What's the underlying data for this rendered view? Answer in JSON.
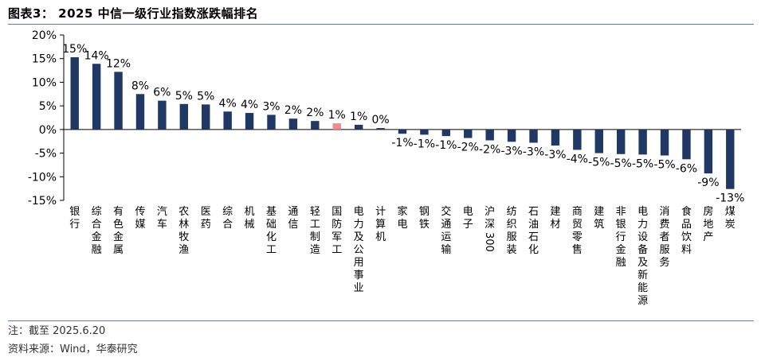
{
  "header": {
    "title": "图表3： 2025 中信一级行业指数涨跌幅排名"
  },
  "footer": {
    "note": "注：截至 2025.6.20",
    "source": "资料来源：Wind，华泰研究"
  },
  "colors": {
    "bar": "#1f3864",
    "highlight": "#f28b8b",
    "rule": "#5b7fa6"
  },
  "chart_data": {
    "type": "bar",
    "title": "",
    "xlabel": "",
    "ylabel": "",
    "ylim": [
      -15,
      20
    ],
    "yticks": [
      20,
      15,
      10,
      5,
      0,
      -5,
      -10,
      -15
    ],
    "ytick_labels": [
      "20%",
      "15%",
      "10%",
      "5%",
      "0%",
      "-5%",
      "-10%",
      "-15%"
    ],
    "grid": false,
    "highlight_category": "国防军工",
    "categories": [
      "银行",
      "综合金融",
      "有色金属",
      "传媒",
      "汽车",
      "农林牧渔",
      "医药",
      "综合",
      "机械",
      "基础化工",
      "通信",
      "轻工制造",
      "国防军工",
      "电力及公用事业",
      "计算机",
      "家电",
      "钢铁",
      "交通运输",
      "电子",
      "沪深300",
      "纺织服装",
      "石油石化",
      "建材",
      "商贸零售",
      "建筑",
      "非银行金融",
      "电力设备及新能源",
      "消费者服务",
      "食品饮料",
      "房地产",
      "煤炭"
    ],
    "values": [
      15.3,
      13.9,
      12.2,
      7.5,
      6.1,
      5.4,
      5.3,
      3.8,
      3.5,
      3.1,
      2.3,
      1.8,
      1.3,
      1.0,
      0.3,
      -0.9,
      -1.1,
      -1.4,
      -1.8,
      -2.3,
      -2.6,
      -2.8,
      -3.4,
      -4.3,
      -5.0,
      -5.2,
      -5.3,
      -5.5,
      -6.3,
      -9.3,
      -12.6
    ],
    "data_labels": [
      "15%",
      "14%",
      "12%",
      "8%",
      "6%",
      "5%",
      "5%",
      "4%",
      "4%",
      "3%",
      "2%",
      "2%",
      "1%",
      "1%",
      "0%",
      "-1%",
      "-1%",
      "-1%",
      "-2%",
      "-2%",
      "-3%",
      "-3%",
      "-3%",
      "-4%",
      "-5%",
      "-5%",
      "-5%",
      "-5%",
      "-6%",
      "-9%",
      "-13%"
    ]
  }
}
